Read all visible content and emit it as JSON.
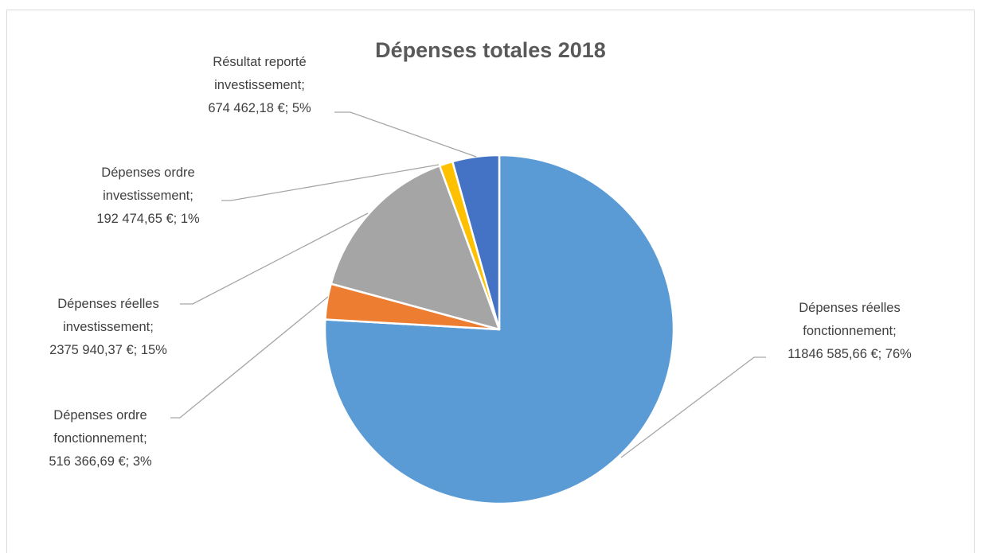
{
  "chart_data": {
    "type": "pie",
    "title": "Dépenses totales 2018",
    "slices": [
      {
        "name": "Dépenses réelles fonctionnement",
        "value": 11846585.66,
        "percent": 76,
        "color": "#5b9bd5",
        "label_lines": [
          "Dépenses réelles",
          "fonctionnement;",
          "11846 585,66 €; 76%"
        ]
      },
      {
        "name": "Dépenses ordre fonctionnement",
        "value": 516366.69,
        "percent": 3,
        "color": "#ed7d31",
        "label_lines": [
          "Dépenses ordre",
          "fonctionnement;",
          "516 366,69 €; 3%"
        ]
      },
      {
        "name": "Dépenses réelles investissement",
        "value": 2375940.37,
        "percent": 15,
        "color": "#a5a5a5",
        "label_lines": [
          "Dépenses réelles",
          "investissement;",
          "2375 940,37 €; 15%"
        ]
      },
      {
        "name": "Dépenses ordre investissement",
        "value": 192474.65,
        "percent": 1,
        "color": "#ffc000",
        "label_lines": [
          "Dépenses ordre",
          "investissement;",
          "192 474,65 €; 1%"
        ]
      },
      {
        "name": "Résultat reporté investissement",
        "value": 674462.18,
        "percent": 5,
        "color": "#4472c4",
        "label_lines": [
          "Résultat reporté",
          "investissement;",
          "674 462,18 €; 5%"
        ]
      }
    ]
  }
}
